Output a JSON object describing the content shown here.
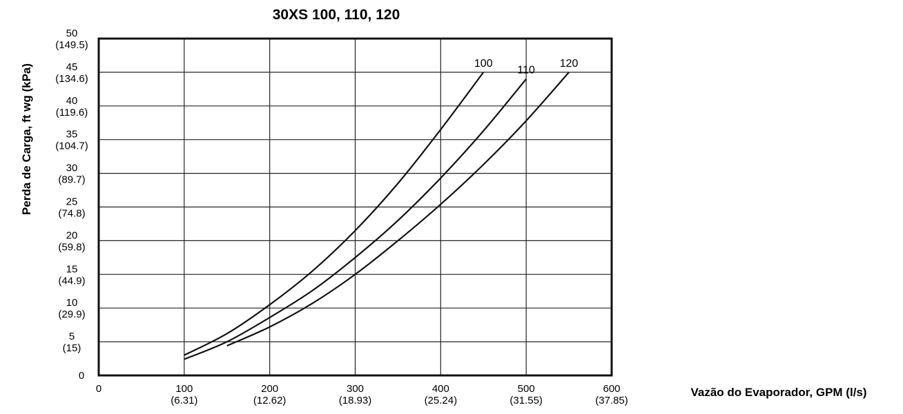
{
  "chart_data": {
    "type": "line",
    "title": "30XS 100, 110, 120",
    "xlabel": "Vazão do Evaporador, GPM (l/s)",
    "ylabel": "Perda de Carga, ft wg (kPa)",
    "xlim": [
      0,
      600
    ],
    "ylim": [
      0,
      50
    ],
    "grid": true,
    "x_ticks": [
      {
        "value": 0,
        "label": "0",
        "sub": ""
      },
      {
        "value": 100,
        "label": "100",
        "sub": "(6.31)"
      },
      {
        "value": 200,
        "label": "200",
        "sub": "(12.62)"
      },
      {
        "value": 300,
        "label": "300",
        "sub": "(18.93)"
      },
      {
        "value": 400,
        "label": "400",
        "sub": "(25.24)"
      },
      {
        "value": 500,
        "label": "500",
        "sub": "(31.55)"
      },
      {
        "value": 600,
        "label": "600",
        "sub": "(37.85)"
      }
    ],
    "y_ticks": [
      {
        "value": 0,
        "label": "0",
        "sub": ""
      },
      {
        "value": 5,
        "label": "5",
        "sub": "(15)"
      },
      {
        "value": 10,
        "label": "10",
        "sub": "(29.9)"
      },
      {
        "value": 15,
        "label": "15",
        "sub": "(44.9)"
      },
      {
        "value": 20,
        "label": "20",
        "sub": "(59.8)"
      },
      {
        "value": 25,
        "label": "25",
        "sub": "(74.8)"
      },
      {
        "value": 30,
        "label": "30",
        "sub": "(89.7)"
      },
      {
        "value": 35,
        "label": "35",
        "sub": "(104.7)"
      },
      {
        "value": 40,
        "label": "40",
        "sub": "(119.6)"
      },
      {
        "value": 45,
        "label": "45",
        "sub": "(134.6)"
      },
      {
        "value": 50,
        "label": "50",
        "sub": "(149.5)"
      }
    ],
    "series": [
      {
        "name": "100",
        "x": [
          100,
          150,
          200,
          250,
          300,
          350,
          400,
          450
        ],
        "y": [
          3.0,
          6.2,
          10.5,
          15.5,
          21.5,
          28.5,
          36.5,
          45.0
        ]
      },
      {
        "name": "110",
        "x": [
          100,
          150,
          200,
          250,
          300,
          350,
          400,
          450,
          500
        ],
        "y": [
          2.4,
          5.0,
          8.6,
          12.6,
          17.5,
          23.0,
          29.3,
          36.3,
          44.0
        ]
      },
      {
        "name": "120",
        "x": [
          150,
          200,
          250,
          300,
          350,
          400,
          450,
          500,
          550
        ],
        "y": [
          4.4,
          7.2,
          10.7,
          15.0,
          20.0,
          25.4,
          31.3,
          37.8,
          45.0
        ]
      }
    ]
  }
}
